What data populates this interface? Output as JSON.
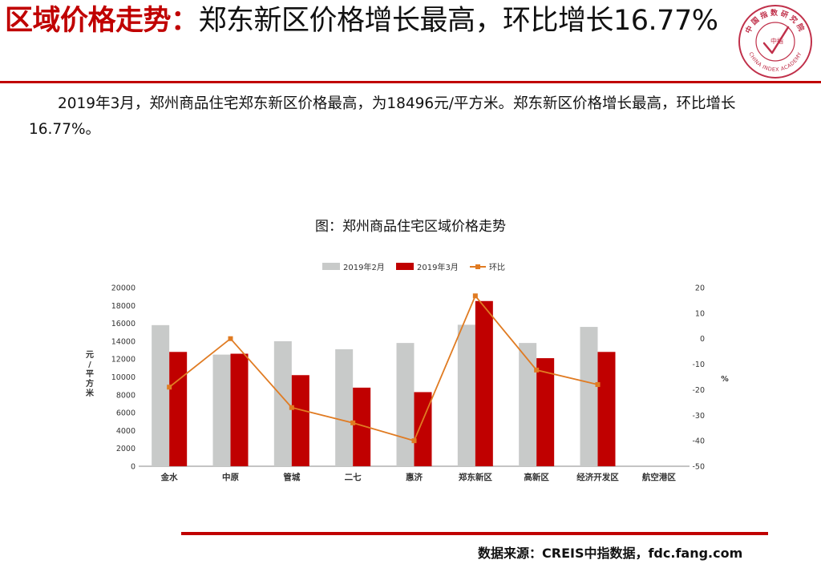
{
  "slide": {
    "title_red": "区域价格走势：",
    "title_black": "郑东新区价格增长最高，环比增长16.77%",
    "body": "2019年3月，郑州商品住宅郑东新区价格最高，为18496元/平方米。郑东新区价格增长最高，环比增长16.77%。",
    "source": "数据来源：CREIS中指数据，fdc.fang.com"
  },
  "logo": {
    "name_top": "中国指数研究院",
    "center": "中指",
    "name_en": "CHINA INDEX ACADEMY",
    "color": "#c0304a"
  },
  "chart_data": {
    "type": "bar",
    "title": "图：郑州商品住宅区域价格走势",
    "categories": [
      "金水",
      "中原",
      "管城",
      "二七",
      "惠济",
      "郑东新区",
      "高新区",
      "经济开发区",
      "航空港区"
    ],
    "series": [
      {
        "name": "2019年2月",
        "type": "bar",
        "axis": "left",
        "color": "#c8cac9",
        "values": [
          15800,
          12500,
          14000,
          13100,
          13800,
          15840,
          13800,
          15600,
          null
        ]
      },
      {
        "name": "2019年3月",
        "type": "bar",
        "axis": "left",
        "color": "#c00000",
        "values": [
          12800,
          12600,
          10200,
          8800,
          8300,
          18496,
          12100,
          12800,
          null
        ]
      },
      {
        "name": "环比",
        "type": "line",
        "axis": "right",
        "color": "#e07b22",
        "values": [
          -19,
          0,
          -27,
          -33,
          -40,
          16.77,
          -12.3,
          -18,
          null
        ]
      }
    ],
    "ylabel": "元/平方米",
    "y2label": "%",
    "ylim": [
      0,
      20000
    ],
    "y2lim": [
      -50,
      20
    ],
    "yticks": [
      "0",
      "2000",
      "4000",
      "6000",
      "8000",
      "10000",
      "12000",
      "14000",
      "16000",
      "18000",
      "20000"
    ],
    "y2ticks": [
      "-50",
      "-40",
      "-30",
      "-20",
      "-10",
      "0",
      "10",
      "20"
    ],
    "legend": "top-center",
    "grid": false
  }
}
